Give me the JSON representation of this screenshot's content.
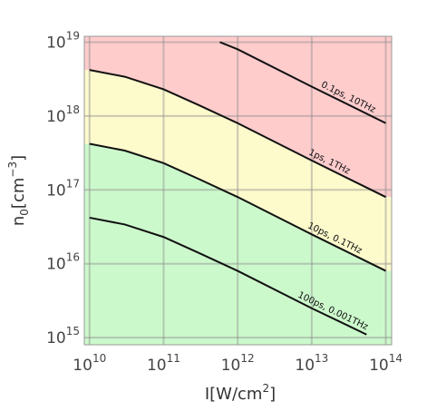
{
  "chart_data": {
    "type": "line",
    "x_scale": "log",
    "y_scale": "log",
    "x_label": {
      "text": "I[W/cm",
      "sup": "2",
      "tail": "]"
    },
    "y_label": {
      "text": "n",
      "sub": "0",
      "mid": "[cm",
      "sup": "−3",
      "tail": "]"
    },
    "xlim": [
      8500000000.0,
      120000000000000.0
    ],
    "ylim": [
      800000000000000.0,
      1.2e+19
    ],
    "xticks": [
      {
        "value": 10000000000.0,
        "label": "10",
        "exponent": "10"
      },
      {
        "value": 100000000000.0,
        "label": "10",
        "exponent": "11"
      },
      {
        "value": 1000000000000.0,
        "label": "10",
        "exponent": "12"
      },
      {
        "value": 10000000000000.0,
        "label": "10",
        "exponent": "13"
      },
      {
        "value": 100000000000000.0,
        "label": "10",
        "exponent": "14"
      }
    ],
    "yticks": [
      {
        "value": 1000000000000000.0,
        "label": "10",
        "exponent": "15"
      },
      {
        "value": 1e+16,
        "label": "10",
        "exponent": "16"
      },
      {
        "value": 1e+17,
        "label": "10",
        "exponent": "17"
      },
      {
        "value": 1e+18,
        "label": "10",
        "exponent": "18"
      },
      {
        "value": 1e+19,
        "label": "10",
        "exponent": "19"
      }
    ],
    "grid": true,
    "grid_color": "#8c8c8c",
    "bands": [
      {
        "color": "#ffcccc"
      },
      {
        "color": "#fdfacc"
      },
      {
        "color": "#ccf9cc"
      }
    ],
    "series": [
      {
        "name": "0.1ps, 10THz",
        "color": "#111111",
        "x": [
          575000000000.0,
          1000000000000.0,
          10000000000000.0,
          100000000000000.0
        ],
        "values": [
          1e+19,
          8e+18,
          2.5e+18,
          8e+17
        ]
      },
      {
        "name": "1ps, 1THz",
        "color": "#111111",
        "x": [
          10000000000.0,
          30000000000.0,
          100000000000.0,
          300000000000.0,
          1000000000000.0,
          10000000000000.0,
          100000000000000.0
        ],
        "values": [
          4.2e+18,
          3.4e+18,
          2.3e+18,
          1.4e+18,
          8e+17,
          2.5e+17,
          8e+16
        ]
      },
      {
        "name": "10ps, 0.1THz",
        "color": "#111111",
        "x": [
          10000000000.0,
          30000000000.0,
          100000000000.0,
          300000000000.0,
          1000000000000.0,
          10000000000000.0,
          100000000000000.0
        ],
        "values": [
          4.2e+17,
          3.4e+17,
          2.3e+17,
          1.4e+17,
          8e+16,
          2.5e+16,
          8000000000000000.0
        ]
      },
      {
        "name": "100ps, 0.001THz",
        "color": "#111111",
        "x": [
          10000000000.0,
          30000000000.0,
          100000000000.0,
          300000000000.0,
          1000000000000.0,
          10000000000000.0,
          55000000000000.0
        ],
        "values": [
          4.2e+16,
          3.4e+16,
          2.3e+16,
          1.4e+16,
          8000000000000000.0,
          2500000000000000.0,
          1100000000000000.0
        ]
      }
    ]
  }
}
